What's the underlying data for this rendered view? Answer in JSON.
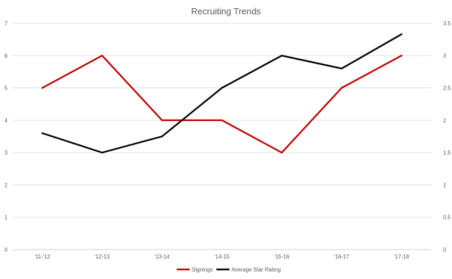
{
  "chart_data": {
    "type": "line",
    "title": "Recruiting Trends",
    "categories": [
      "'11-'12",
      "'12-13",
      "'13-14",
      "'14-15",
      "'15-16",
      "'16-17",
      "'17-18"
    ],
    "y_left": {
      "ticks": [
        "0",
        "1",
        "2",
        "3",
        "4",
        "5",
        "6",
        "7"
      ],
      "ylim": [
        0,
        7
      ]
    },
    "y_right": {
      "ticks": [
        "0",
        "0.5",
        "1",
        "1.5",
        "2",
        "2.5",
        "3",
        "3.5"
      ],
      "ylim": [
        0,
        3.5
      ]
    },
    "grid": true,
    "legend_position": "bottom",
    "series": [
      {
        "name": "Signings",
        "axis": "left",
        "color": "#c00000",
        "values": [
          5,
          6,
          4,
          4,
          3,
          5,
          6
        ]
      },
      {
        "name": "Average Star Rating",
        "axis": "right",
        "color": "#000000",
        "values": [
          1.8,
          1.5,
          1.75,
          2.5,
          3.0,
          2.8,
          3.33
        ]
      }
    ]
  }
}
